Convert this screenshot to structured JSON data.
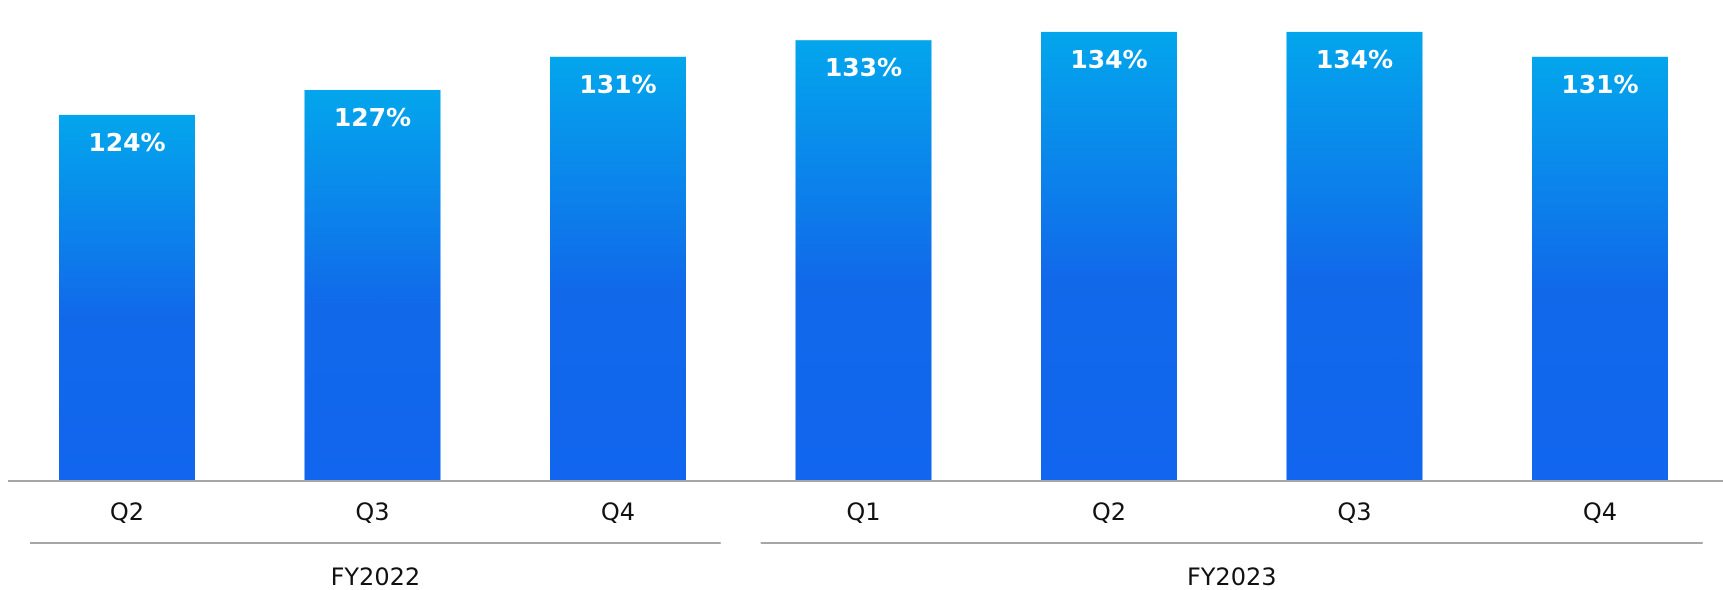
{
  "chart_data": {
    "type": "bar",
    "categories": [
      "Q2",
      "Q3",
      "Q4",
      "Q1",
      "Q2",
      "Q3",
      "Q4"
    ],
    "values": [
      124,
      127,
      131,
      133,
      134,
      134,
      131
    ],
    "data_labels": [
      "124%",
      "127%",
      "131%",
      "133%",
      "134%",
      "134%",
      "131%"
    ],
    "groups": [
      {
        "label": "FY2022",
        "categories": [
          0,
          1,
          2
        ]
      },
      {
        "label": "FY2023",
        "categories": [
          3,
          4,
          5,
          6
        ]
      }
    ],
    "unit": "%",
    "ylim": [
      80,
      137
    ],
    "grid": false,
    "legend": "none",
    "bar_gradient": {
      "top": "#03A6EC",
      "middle": "#1169EA",
      "bottom": "#1165EE"
    },
    "axis_color": "#A6A6A6"
  }
}
